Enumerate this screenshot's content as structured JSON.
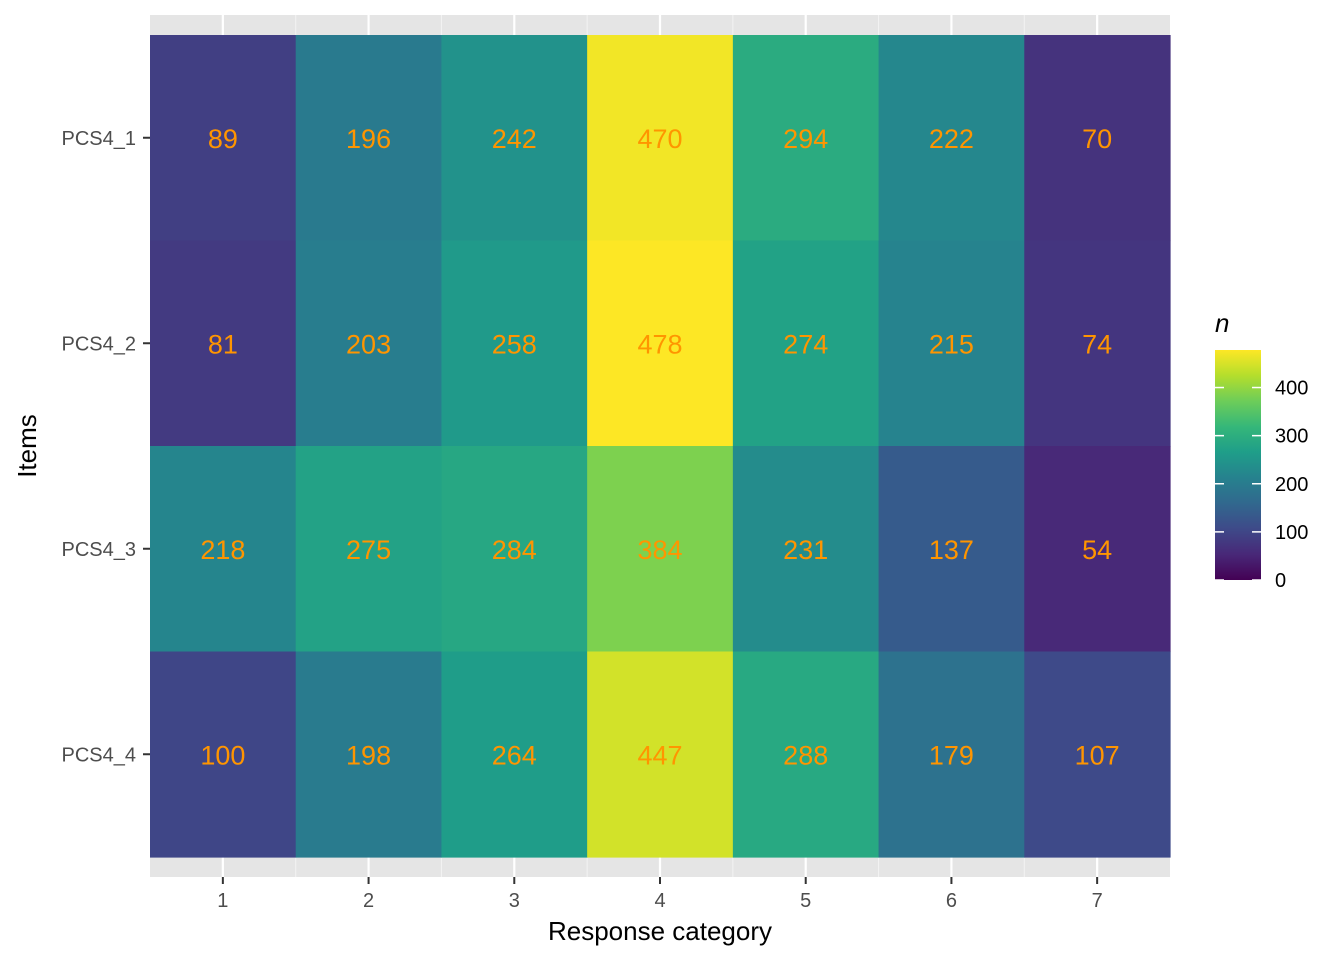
{
  "chart_data": {
    "type": "heatmap",
    "xlabel": "Response category",
    "ylabel": "Items",
    "x_categories": [
      "1",
      "2",
      "3",
      "4",
      "5",
      "6",
      "7"
    ],
    "y_categories": [
      "PCS4_1",
      "PCS4_2",
      "PCS4_3",
      "PCS4_4"
    ],
    "values": [
      [
        89,
        196,
        242,
        470,
        294,
        222,
        70
      ],
      [
        81,
        203,
        258,
        478,
        274,
        215,
        74
      ],
      [
        218,
        275,
        284,
        384,
        231,
        137,
        54
      ],
      [
        100,
        198,
        264,
        447,
        288,
        179,
        107
      ]
    ],
    "value_labels": [
      [
        "89",
        "196",
        "242",
        "470",
        "294",
        "222",
        "70"
      ],
      [
        "81",
        "203",
        "258",
        "478",
        "274",
        "215",
        "74"
      ],
      [
        "218",
        "275",
        "284",
        "384",
        "231",
        "137",
        "54"
      ],
      [
        "100",
        "198",
        "264",
        "447",
        "288",
        "179",
        "107"
      ]
    ],
    "label_color": "#ff9500",
    "colorscale": "viridis",
    "color_range": [
      0,
      478
    ],
    "panel_background": "#e5e5e5",
    "grid": true,
    "legend": {
      "title": "n",
      "position": "right",
      "ticks": [
        0,
        100,
        200,
        300,
        400
      ],
      "tick_labels": [
        "0",
        "100",
        "200",
        "300",
        "400"
      ]
    }
  }
}
